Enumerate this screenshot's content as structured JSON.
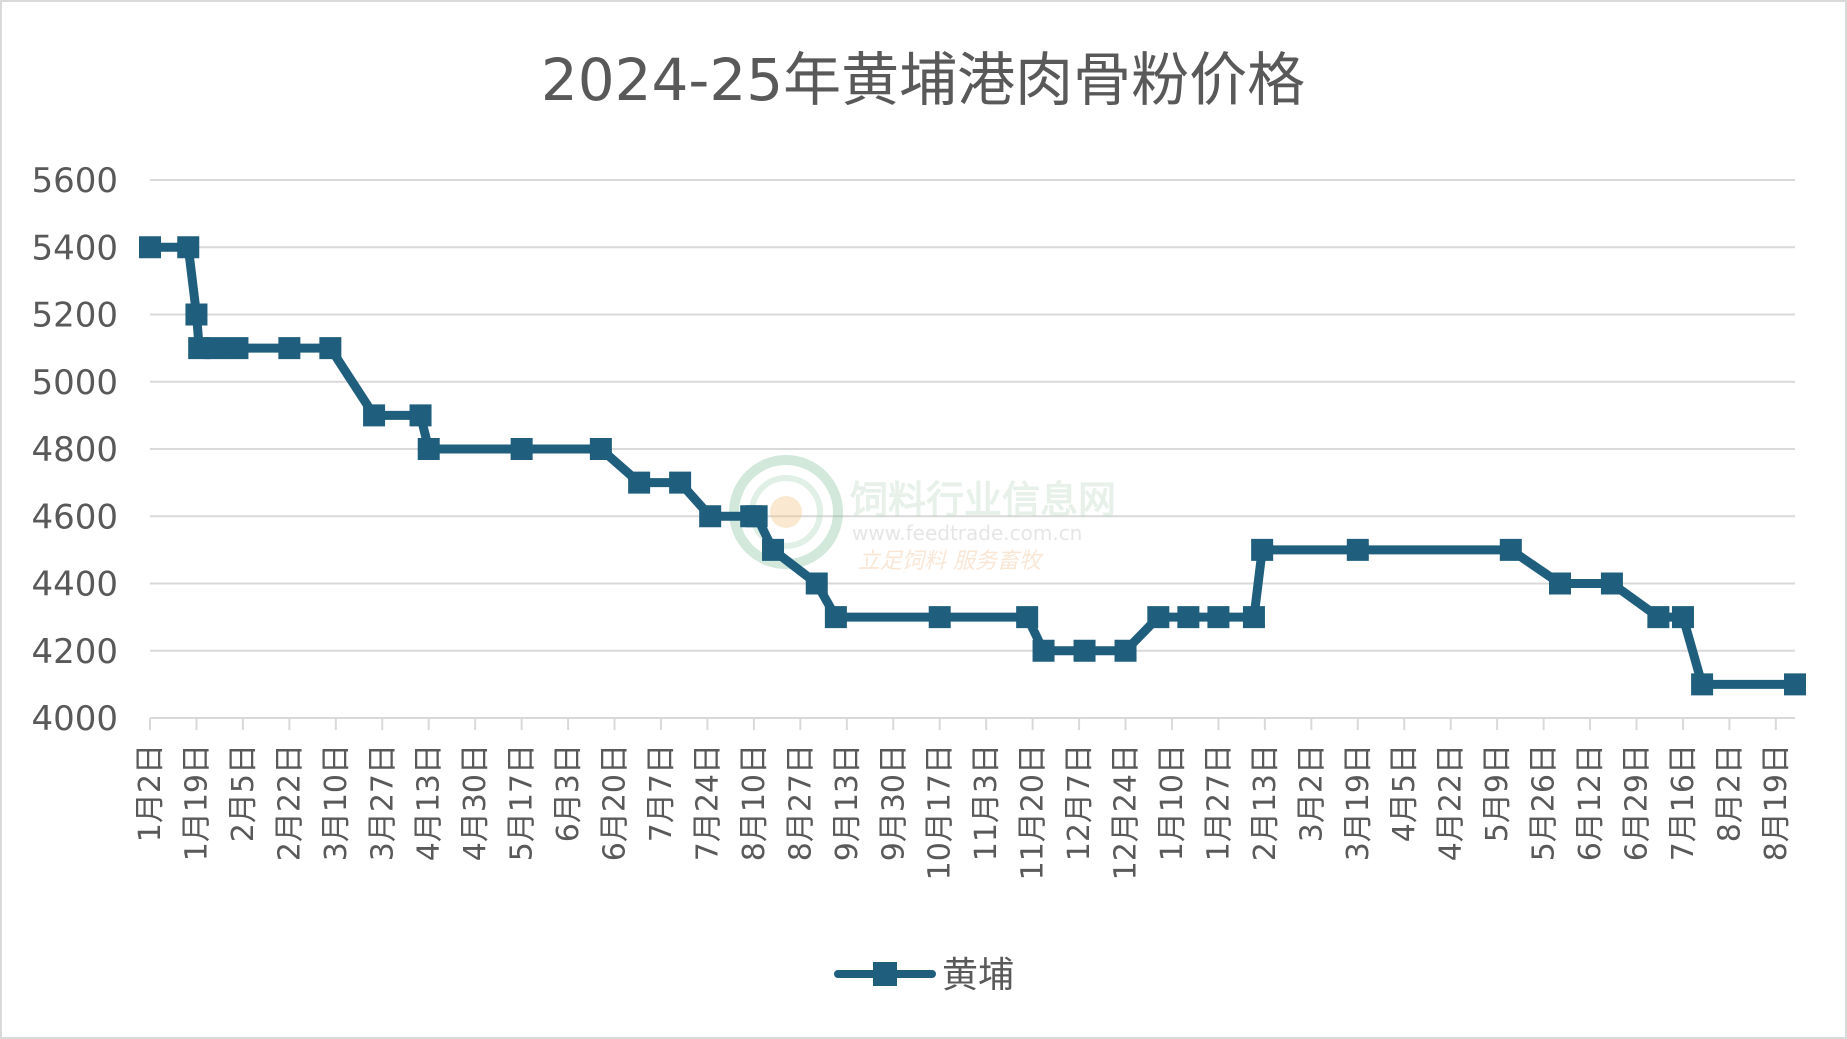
{
  "chart_data": {
    "type": "line",
    "title": "2024-25年黄埔港肉骨粉价格",
    "xlabel": "",
    "ylabel": "",
    "ylim": [
      4000,
      5600
    ],
    "yticks": [
      4000,
      4200,
      4400,
      4600,
      4800,
      5000,
      5200,
      5400,
      5600
    ],
    "grid": true,
    "legend": "bottom",
    "x_tick_labels": [
      "1月2日",
      "1月19日",
      "2月5日",
      "2月22日",
      "3月10日",
      "3月27日",
      "4月13日",
      "4月30日",
      "5月17日",
      "6月3日",
      "6月20日",
      "7月7日",
      "7月24日",
      "8月10日",
      "8月27日",
      "9月13日",
      "9月30日",
      "10月17日",
      "11月3日",
      "11月20日",
      "12月7日",
      "12月24日",
      "1月10日",
      "1月27日",
      "2月13日",
      "3月2日",
      "3月19日",
      "4月5日",
      "4月22日",
      "5月9日",
      "5月26日",
      "6月12日",
      "6月29日",
      "7月16日",
      "8月2日",
      "8月19日"
    ],
    "series": [
      {
        "name": "黄埔",
        "color": "#1f5f7d",
        "x": [
          "2024-01-02",
          "2024-01-16",
          "2024-01-19",
          "2024-01-20",
          "2024-01-26",
          "2024-02-03",
          "2024-02-22",
          "2024-03-08",
          "2024-03-24",
          "2024-04-10",
          "2024-04-13",
          "2024-05-17",
          "2024-06-15",
          "2024-06-29",
          "2024-07-14",
          "2024-07-25",
          "2024-08-09",
          "2024-08-11",
          "2024-08-17",
          "2024-09-02",
          "2024-09-09",
          "2024-10-17",
          "2024-11-18",
          "2024-11-24",
          "2024-12-09",
          "2024-12-24",
          "2025-01-05",
          "2025-01-16",
          "2025-01-27",
          "2025-02-09",
          "2025-02-12",
          "2025-03-19",
          "2025-05-14",
          "2025-06-01",
          "2025-06-20",
          "2025-07-07",
          "2025-07-16",
          "2025-07-23",
          "2025-08-26"
        ],
        "values": [
          5400,
          5400,
          5200,
          5100,
          5100,
          5100,
          5100,
          5100,
          4900,
          4900,
          4800,
          4800,
          4800,
          4700,
          4700,
          4600,
          4600,
          4600,
          4500,
          4400,
          4300,
          4300,
          4300,
          4200,
          4200,
          4200,
          4300,
          4300,
          4300,
          4300,
          4500,
          4500,
          4500,
          4400,
          4400,
          4300,
          4300,
          4100,
          4100
        ]
      }
    ]
  },
  "watermark": {
    "name": "饲料行业信息网",
    "url": "www.feedtrade.com.cn",
    "slogan": "立足饲料    服务畜牧"
  }
}
